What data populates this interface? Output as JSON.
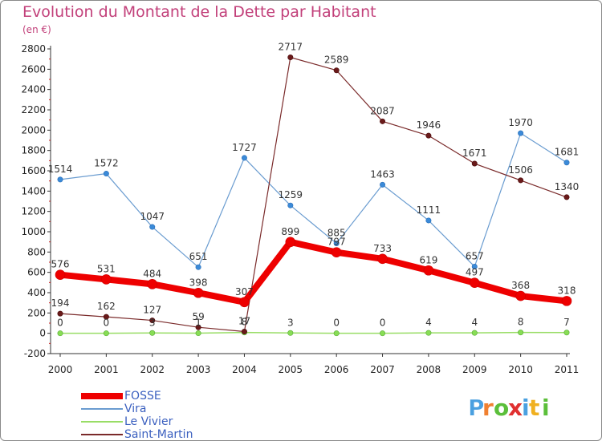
{
  "title": "Evolution du Montant de la Dette par Habitant",
  "unit": "(en €)",
  "logo": "Proxiti",
  "chart_data": {
    "type": "line",
    "title": "Evolution du Montant de la Dette par Habitant",
    "ylabel": "(en €)",
    "xlabel": "",
    "ylim": [
      -200,
      2800
    ],
    "yticks": [
      "-200",
      "0",
      "200",
      "400",
      "600",
      "800",
      "1000",
      "1200",
      "1400",
      "1600",
      "1800",
      "2000",
      "2200",
      "2400",
      "2600",
      "2800"
    ],
    "categories": [
      "2000",
      "2001",
      "2002",
      "2003",
      "2004",
      "2005",
      "2006",
      "2007",
      "2008",
      "2009",
      "2010",
      "2011"
    ],
    "grid": false,
    "legend_position": "bottom-left",
    "series": [
      {
        "name": "FOSSE",
        "color": "#ee0000",
        "values": [
          576,
          531,
          484,
          398,
          307,
          899,
          797,
          733,
          619,
          497,
          368,
          318
        ],
        "labels": [
          "576",
          "531",
          "484",
          "398",
          "307",
          "899",
          "797",
          "733",
          "619",
          "497",
          "368",
          "318"
        ]
      },
      {
        "name": "Vira",
        "color": "#6a9cd0",
        "values": [
          1514,
          1572,
          1047,
          651,
          1727,
          1259,
          885,
          1463,
          1111,
          657,
          1970,
          1681
        ],
        "labels": [
          "1514",
          "1572",
          "1047",
          "651",
          "1727",
          "1259",
          "885",
          "1463",
          "1111",
          "657",
          "1970",
          "1681"
        ]
      },
      {
        "name": "Le Vivier",
        "color": "#99dd66",
        "values": [
          0,
          0,
          3,
          1,
          8,
          3,
          0,
          0,
          4,
          4,
          8,
          7
        ],
        "labels": [
          "0",
          "0",
          "3",
          "1",
          "8",
          "3",
          "0",
          "0",
          "4",
          "4",
          "8",
          "7"
        ]
      },
      {
        "name": "Saint-Martin",
        "color": "#7a2a2a",
        "values": [
          194,
          162,
          127,
          59,
          17,
          2717,
          2589,
          2087,
          1946,
          1671,
          1506,
          1340
        ],
        "labels": [
          "194",
          "162",
          "127",
          "59",
          "17",
          "2717",
          "2589",
          "2087",
          "1946",
          "1671",
          "1506",
          "1340"
        ]
      }
    ]
  }
}
